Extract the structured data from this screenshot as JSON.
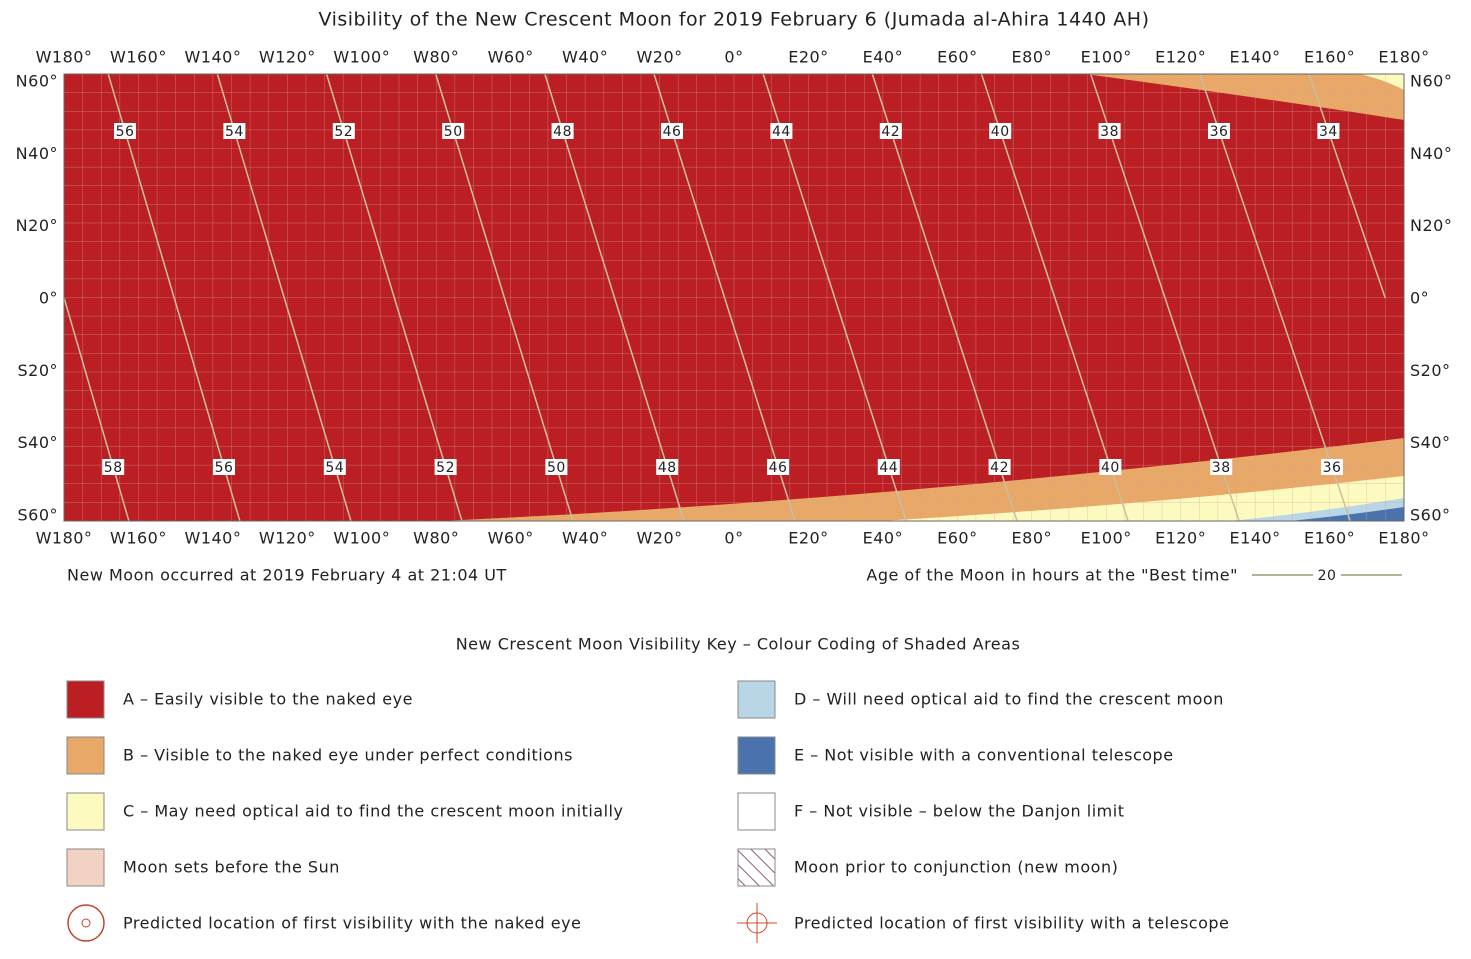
{
  "title": "Visibility of the New Crescent Moon for 2019 February 6 (Jumada al-Ahira 1440 AH)",
  "lon_labels": [
    "W180°",
    "W160°",
    "W140°",
    "W120°",
    "W100°",
    "W80°",
    "W60°",
    "W40°",
    "W20°",
    "0°",
    "E20°",
    "E40°",
    "E60°",
    "E80°",
    "E100°",
    "E120°",
    "E140°",
    "E160°",
    "E180°"
  ],
  "lat_labels": [
    "N60°",
    "N40°",
    "N20°",
    "0°",
    "S20°",
    "S40°",
    "S60°"
  ],
  "age_contours": {
    "top": [
      56,
      54,
      52,
      50,
      48,
      46,
      44,
      42,
      40,
      38,
      36,
      34
    ],
    "bottom": [
      58,
      56,
      54,
      52,
      50,
      48,
      46,
      44,
      42,
      40,
      38,
      36
    ]
  },
  "new_moon_note": "New Moon occurred at 2019 February 4 at 21:04 UT",
  "age_legend": {
    "label": "Age of the Moon in hours at the \"Best time\"",
    "sample": 20
  },
  "key": {
    "title": "New Crescent Moon Visibility Key – Colour Coding of Shaded Areas",
    "items": [
      {
        "label": "A – Easily visible to the naked eye"
      },
      {
        "label": "B – Visible to the naked eye under perfect conditions"
      },
      {
        "label": "C – May need optical aid to find the crescent moon initially"
      },
      {
        "label": "Moon sets before the Sun"
      },
      {
        "label": "Predicted location of first visibility with the naked eye"
      },
      {
        "label": "D – Will need optical aid to find the crescent moon"
      },
      {
        "label": "E – Not visible with a conventional telescope"
      },
      {
        "label": "F – Not visible – below the Danjon limit"
      },
      {
        "label": "Moon prior to conjunction (new moon)"
      },
      {
        "label": "Predicted location of first visibility with a telescope"
      }
    ]
  }
}
